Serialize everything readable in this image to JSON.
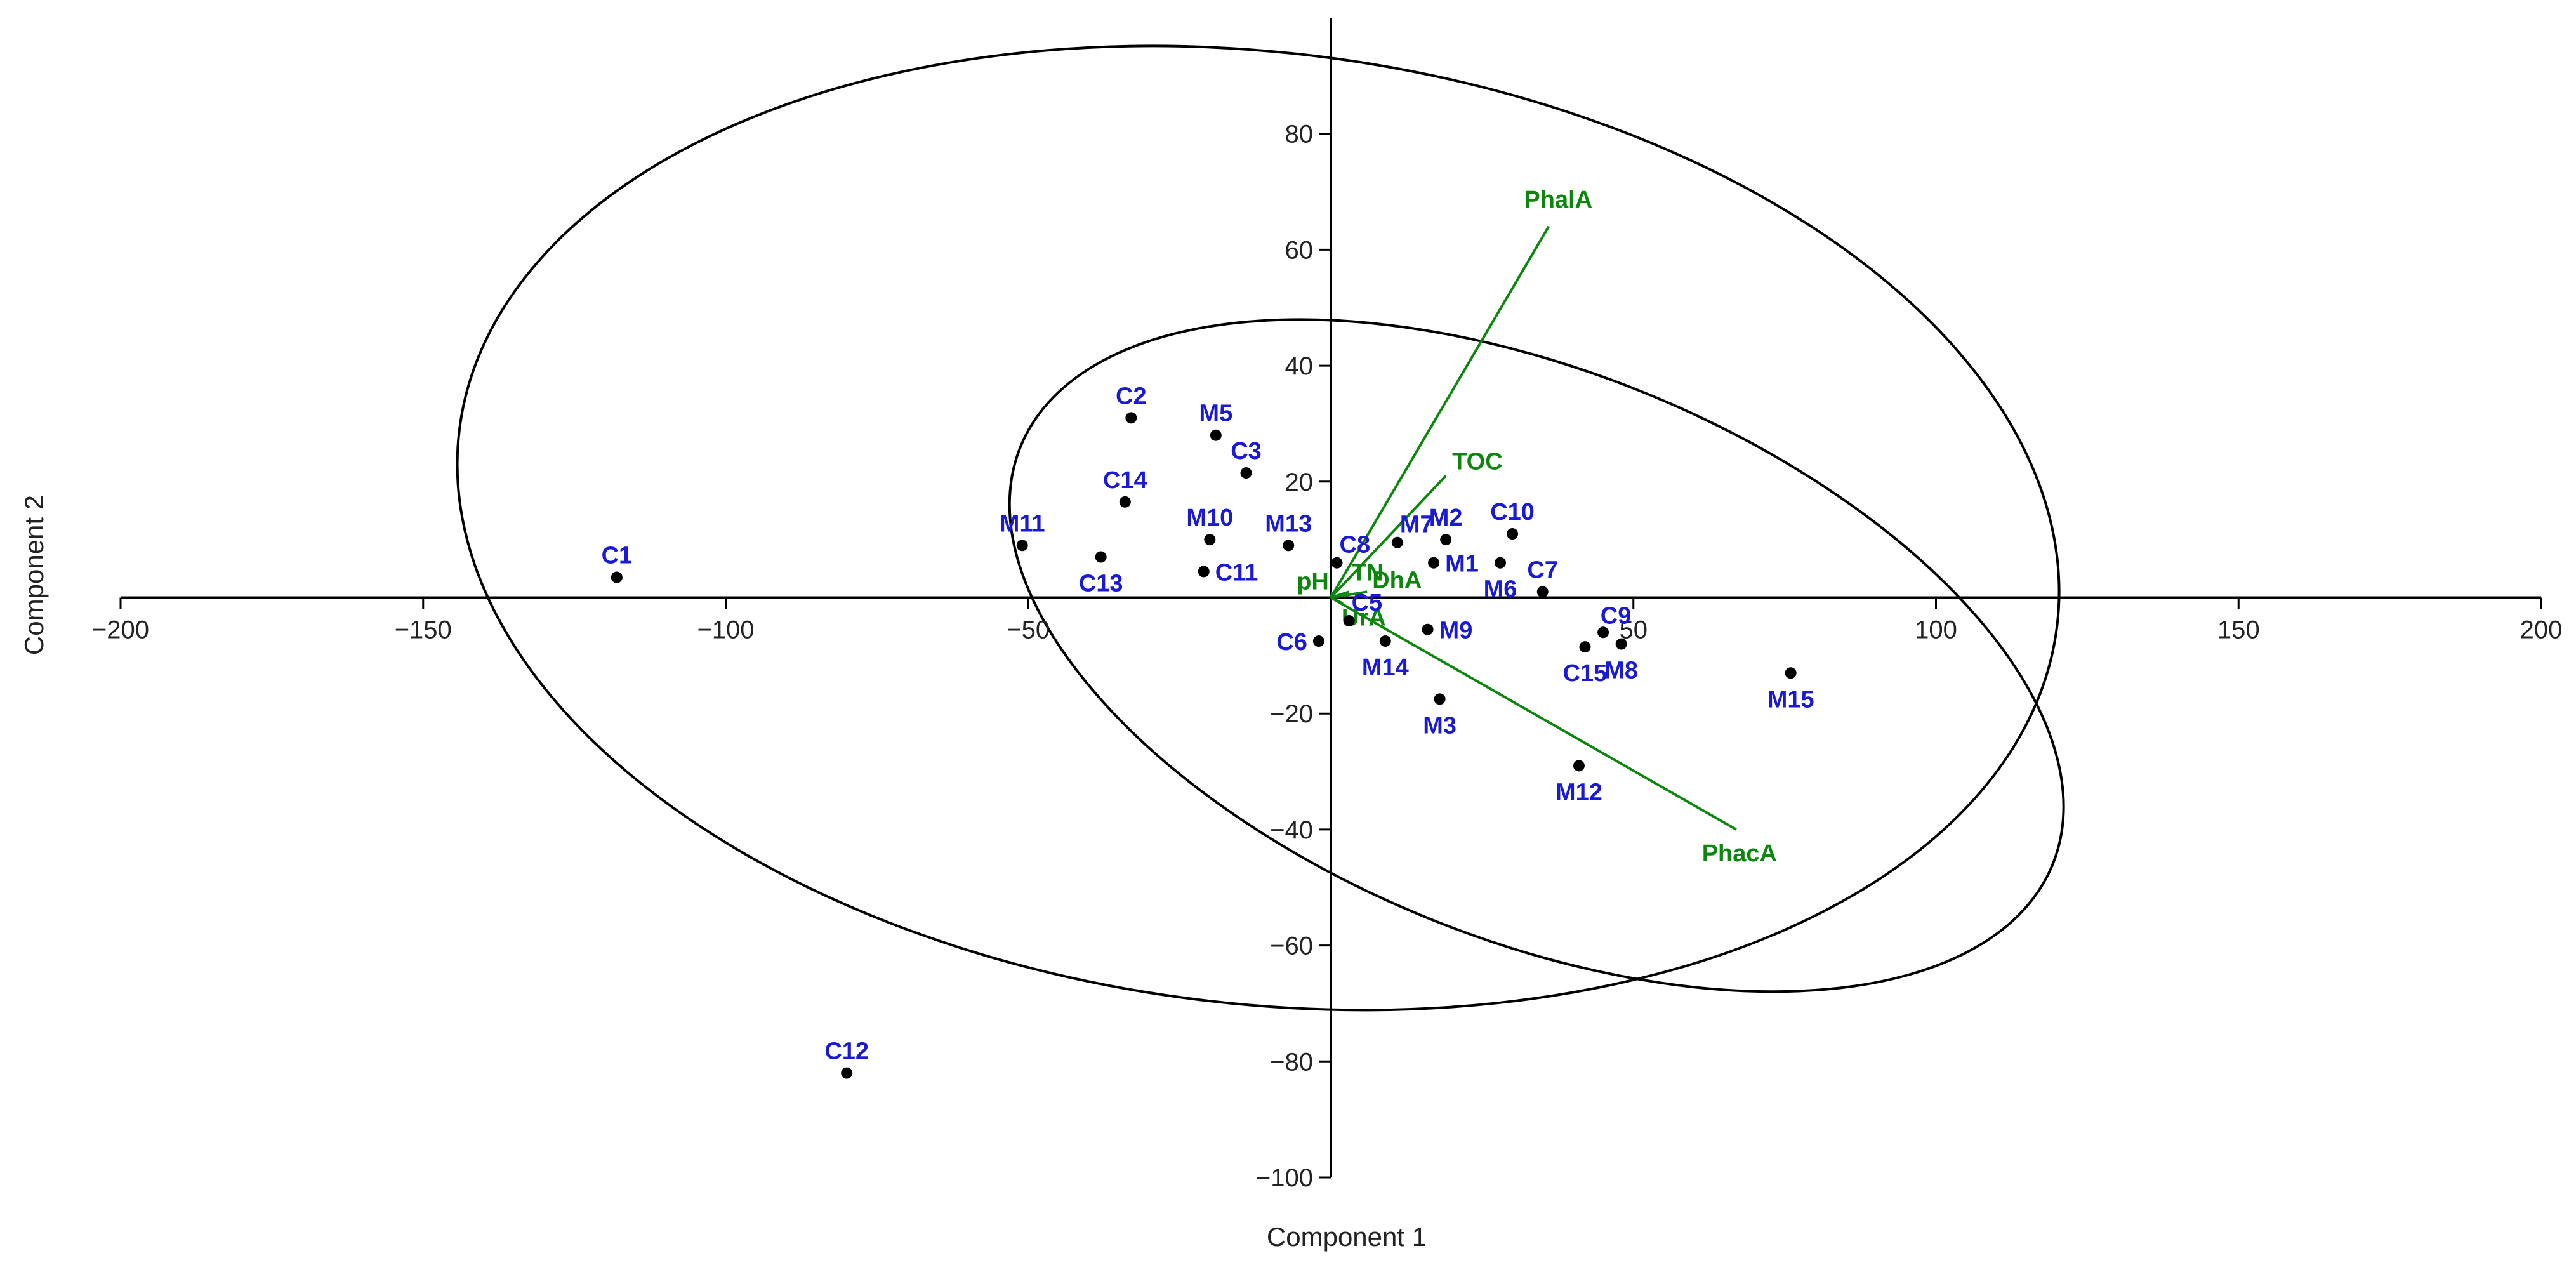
{
  "chart_data": {
    "type": "scatter",
    "xlabel": "Component 1",
    "ylabel": "Component 2",
    "xlim": [
      -200,
      200
    ],
    "ylim": [
      -100,
      100
    ],
    "x_ticks": [
      -200,
      -150,
      -100,
      -50,
      50,
      100,
      150,
      200
    ],
    "x_tick_labels": [
      "−200",
      "−150",
      "−100",
      "−50",
      "50",
      "100",
      "150",
      "200"
    ],
    "y_ticks": [
      80,
      60,
      40,
      20,
      -20,
      -40,
      -60,
      -80,
      -100
    ],
    "y_tick_labels": [
      "80",
      "60",
      "40",
      "20",
      "−20",
      "−40",
      "−60",
      "−80",
      "−100"
    ],
    "grid": false,
    "colors": {
      "points": "#000000",
      "point_labels": "#1a1ad6",
      "vectors": "#0d860d",
      "ellipses": "#000000"
    },
    "points": [
      {
        "label": "C1",
        "x": -118,
        "y": 3.5,
        "pos": "above"
      },
      {
        "label": "C2",
        "x": -33,
        "y": 31,
        "pos": "above"
      },
      {
        "label": "C3",
        "x": -14,
        "y": 21.5,
        "pos": "above"
      },
      {
        "label": "C5",
        "x": 3,
        "y": -4,
        "pos": "above-right"
      },
      {
        "label": "C6",
        "x": -2,
        "y": -7.5,
        "pos": "left"
      },
      {
        "label": "C7",
        "x": 35,
        "y": 1,
        "pos": "above"
      },
      {
        "label": "C8",
        "x": 1,
        "y": 6,
        "pos": "above-right"
      },
      {
        "label": "C9",
        "x": 45,
        "y": -6,
        "pos": "above-left"
      },
      {
        "label": "C10",
        "x": 30,
        "y": 11,
        "pos": "above"
      },
      {
        "label": "C11",
        "x": -21,
        "y": 4.5,
        "pos": "right"
      },
      {
        "label": "C12",
        "x": -80,
        "y": -82,
        "pos": "above"
      },
      {
        "label": "C13",
        "x": -38,
        "y": 7,
        "pos": "below"
      },
      {
        "label": "C14",
        "x": -34,
        "y": 16.5,
        "pos": "above"
      },
      {
        "label": "C15",
        "x": 42,
        "y": -8.5,
        "pos": "below"
      },
      {
        "label": "M1",
        "x": 17,
        "y": 6,
        "pos": "right"
      },
      {
        "label": "M2",
        "x": 19,
        "y": 10,
        "pos": "above"
      },
      {
        "label": "M3",
        "x": 18,
        "y": -17.5,
        "pos": "below"
      },
      {
        "label": "M5",
        "x": -19,
        "y": 28,
        "pos": "above"
      },
      {
        "label": "M6",
        "x": 28,
        "y": 6,
        "pos": "below"
      },
      {
        "label": "M7",
        "x": 11,
        "y": 9.5,
        "pos": "above-right"
      },
      {
        "label": "M8",
        "x": 48,
        "y": -8,
        "pos": "below"
      },
      {
        "label": "M9",
        "x": 16,
        "y": -5.5,
        "pos": "right"
      },
      {
        "label": "M10",
        "x": -20,
        "y": 10,
        "pos": "above"
      },
      {
        "label": "M11",
        "x": -51,
        "y": 9,
        "pos": "above"
      },
      {
        "label": "M12",
        "x": 41,
        "y": -29,
        "pos": "below"
      },
      {
        "label": "M13",
        "x": -7,
        "y": 9,
        "pos": "above"
      },
      {
        "label": "M14",
        "x": 9,
        "y": -7.5,
        "pos": "below"
      },
      {
        "label": "M15",
        "x": 76,
        "y": -13,
        "pos": "below"
      }
    ],
    "vectors": [
      {
        "label": "PhalA",
        "x": 36,
        "y": 64
      },
      {
        "label": "TOC",
        "x": 19,
        "y": 21
      },
      {
        "label": "PhacA",
        "x": 67,
        "y": -40
      },
      {
        "label": "DhA",
        "x": 6,
        "y": 1
      },
      {
        "label": "TN",
        "x": 3,
        "y": 1
      },
      {
        "label": "pH",
        "x": 0.3,
        "y": 1
      },
      {
        "label": "UrA",
        "x": 2,
        "y": -1
      }
    ],
    "ellipses": [
      {
        "center": [
          -12,
          12
        ],
        "semi_axes": [
          133,
          82
        ],
        "rotation_deg": -7
      },
      {
        "center": [
          34,
          -10
        ],
        "semi_axes": [
          92,
          49
        ],
        "rotation_deg": -22
      }
    ]
  }
}
